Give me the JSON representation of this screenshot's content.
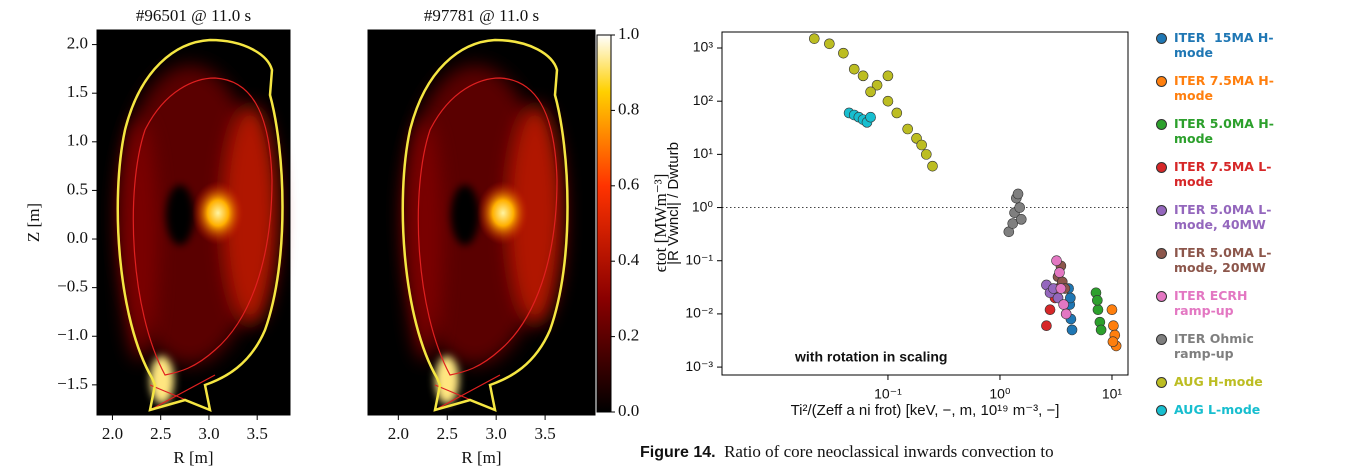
{
  "chart_data": [
    {
      "type": "heatmap",
      "title": "#96501 @ 11.0 s",
      "xlabel": "R [m]",
      "ylabel": "Z [m]",
      "xlim": [
        1.84,
        3.84
      ],
      "ylim": [
        -1.81,
        2.15
      ],
      "xticks": [
        {
          "value": 2.0,
          "label": "2.0"
        },
        2.5,
        {
          "value": 3.0,
          "label": "3.0"
        },
        3.5
      ],
      "yticks": [
        {
          "value": 2.0,
          "label": "2.0"
        },
        1.5,
        {
          "value": 1.0,
          "label": "1.0"
        },
        0.5,
        {
          "value": 0.0,
          "label": "0.0"
        },
        {
          "value": -0.5,
          "label": "−0.5"
        },
        {
          "value": -1.0,
          "label": "−1.0"
        },
        {
          "value": -1.5,
          "label": "−1.5"
        }
      ]
    },
    {
      "type": "heatmap",
      "title": "#97781 @ 11.0 s",
      "xlabel": "R [m]",
      "xlim": [
        1.69,
        4.01
      ],
      "ylim": [
        -1.81,
        2.15
      ],
      "xticks": [
        {
          "value": 2.0,
          "label": "2.0"
        },
        2.5,
        {
          "value": 3.0,
          "label": "3.0"
        },
        3.5
      ],
      "colorbar": {
        "label": "ϵtot [MWm⁻³]",
        "lim": [
          0,
          1
        ],
        "ticks": [
          {
            "value": 0,
            "label": "0.0"
          },
          0.2,
          0.4,
          0.6,
          0.8,
          {
            "value": 1,
            "label": "1.0"
          }
        ]
      }
    },
    {
      "type": "scatter",
      "xlabel": "Ti²/(Zeff a ni frot) [keV, −, m, 10¹⁹ m⁻³, −]",
      "ylabel": "|R Vwncl| / Dwturb",
      "annotation": "with rotation in scaling",
      "xscale": "log",
      "yscale": "log",
      "hline": 1,
      "xlim": [
        0.0033,
        13.9
      ],
      "ylim": [
        0.00071,
        2000
      ],
      "xticks": [
        {
          "value": 0.1,
          "label": "10⁻¹"
        },
        {
          "value": 1,
          "label": "10⁰"
        },
        {
          "value": 10,
          "label": "10¹"
        }
      ],
      "yticks": [
        {
          "value": 0.001,
          "label": "10⁻³"
        },
        {
          "value": 0.01,
          "label": "10⁻²"
        },
        {
          "value": 0.1,
          "label": "10⁻¹"
        },
        {
          "value": 1,
          "label": "10⁰"
        },
        {
          "value": 10,
          "label": "10¹"
        },
        {
          "value": 100,
          "label": "10²"
        },
        {
          "value": 1000,
          "label": "10³"
        }
      ],
      "series": [
        {
          "name": "ITER  15MA H-mode",
          "color": "#1f77b4",
          "x": [
            4.1,
            4.2,
            4.3,
            4.4,
            4.25
          ],
          "values": [
            0.03,
            0.015,
            0.008,
            0.005,
            0.02
          ]
        },
        {
          "name": "ITER 7.5MA H-mode",
          "color": "#ff7f0e",
          "x": [
            10,
            10.3,
            10.6,
            10.9,
            10.2
          ],
          "values": [
            0.012,
            0.006,
            0.004,
            0.0025,
            0.003
          ]
        },
        {
          "name": "ITER 5.0MA H-mode",
          "color": "#2ca02c",
          "x": [
            7.2,
            7.5,
            7.8,
            8,
            7.4
          ],
          "values": [
            0.025,
            0.012,
            0.007,
            0.005,
            0.018
          ]
        },
        {
          "name": "ITER 7.5MA L-mode",
          "color": "#d62728",
          "x": [
            2.6,
            2.8,
            3.1,
            3.3
          ],
          "values": [
            0.006,
            0.012,
            0.02,
            0.03
          ]
        },
        {
          "name": "ITER 5.0MA L-mode, 40MW",
          "color": "#9467bd",
          "x": [
            2.6,
            2.8,
            3.0,
            3.3
          ],
          "values": [
            0.035,
            0.025,
            0.03,
            0.02
          ]
        },
        {
          "name": "ITER 5.0MA L-mode, 20MW",
          "color": "#8c564b",
          "x": [
            3.3,
            3.5,
            3.6,
            3.8
          ],
          "values": [
            0.05,
            0.08,
            0.04,
            0.03
          ]
        },
        {
          "name": "ITER ECRH ramp-up",
          "color": "#e377c2",
          "x": [
            3.2,
            3.4,
            3.5,
            3.7,
            3.9
          ],
          "values": [
            0.1,
            0.06,
            0.03,
            0.015,
            0.01
          ]
        },
        {
          "name": "ITER Ohmic ramp-up",
          "color": "#7f7f7f",
          "x": [
            1.2,
            1.3,
            1.35,
            1.4,
            1.45,
            1.5,
            1.55
          ],
          "values": [
            0.35,
            0.5,
            0.8,
            1.5,
            1.8,
            1.0,
            0.6
          ]
        },
        {
          "name": "AUG H-mode",
          "color": "#bcbd22",
          "x": [
            0.022,
            0.03,
            0.04,
            0.05,
            0.06,
            0.08,
            0.1,
            0.12,
            0.15,
            0.18,
            0.22,
            0.25,
            0.1,
            0.07,
            0.2
          ],
          "values": [
            1500,
            1200,
            800,
            400,
            300,
            200,
            100,
            60,
            30,
            20,
            10,
            6,
            300,
            150,
            15
          ]
        },
        {
          "name": "AUG L-mode",
          "color": "#17becf",
          "x": [
            0.045,
            0.05,
            0.055,
            0.06,
            0.065,
            0.07
          ],
          "values": [
            60,
            55,
            50,
            45,
            40,
            50
          ]
        }
      ]
    }
  ],
  "caption": {
    "label": "Figure 14.",
    "text": "Ratio of core neoclassical inwards convection to"
  }
}
